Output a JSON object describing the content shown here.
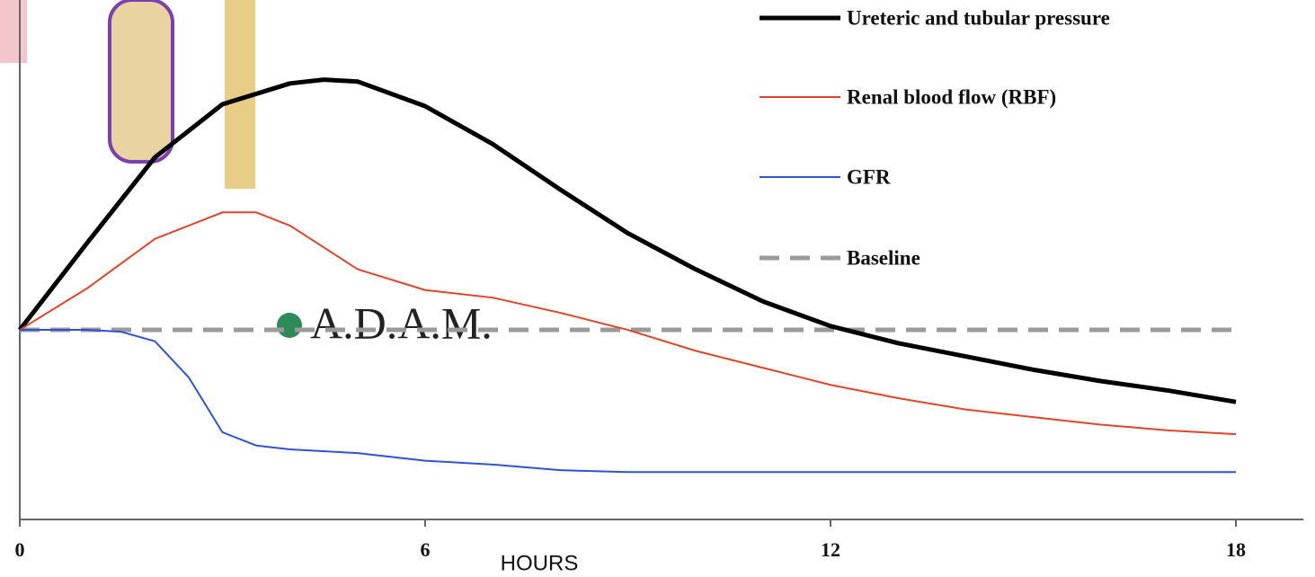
{
  "chart_data": {
    "type": "line",
    "x_label": "HOURS",
    "watermark": "A.D.A.M.",
    "xlim": [
      0,
      19
    ],
    "xticks": [
      0,
      6,
      12,
      18
    ],
    "ylim": [
      -1,
      1.74
    ],
    "series": [
      {
        "name": "Ureteric and tubular pressure",
        "color": "#000000",
        "width": 5,
        "dashed": false,
        "x": [
          0,
          1,
          2,
          3,
          4,
          4.5,
          5,
          6,
          7,
          8,
          9,
          10,
          11,
          12,
          13,
          14,
          15,
          16,
          17,
          18
        ],
        "values": [
          0,
          0.46,
          0.91,
          1.19,
          1.3,
          1.32,
          1.31,
          1.18,
          0.98,
          0.74,
          0.51,
          0.32,
          0.15,
          0.02,
          -0.07,
          -0.14,
          -0.21,
          -0.27,
          -0.32,
          -0.38
        ]
      },
      {
        "name": "Renal blood flow (RBF)",
        "color": "#e0442a",
        "width": 2,
        "dashed": false,
        "x": [
          0,
          1,
          2,
          3,
          3.5,
          4,
          5,
          6,
          7,
          8,
          9,
          10,
          11,
          12,
          13,
          14,
          15,
          16,
          17,
          18
        ],
        "values": [
          0,
          0.22,
          0.48,
          0.62,
          0.62,
          0.55,
          0.32,
          0.21,
          0.17,
          0.09,
          0,
          -0.11,
          -0.2,
          -0.29,
          -0.36,
          -0.42,
          -0.46,
          -0.5,
          -0.53,
          -0.55
        ]
      },
      {
        "name": "GFR",
        "color": "#2f52d6",
        "width": 2,
        "dashed": false,
        "x": [
          0,
          1,
          1.5,
          2,
          2.5,
          3,
          3.5,
          4,
          5,
          6,
          7,
          8,
          9,
          10,
          12,
          14,
          16,
          18
        ],
        "values": [
          0,
          0,
          -0.01,
          -0.06,
          -0.25,
          -0.54,
          -0.61,
          -0.63,
          -0.65,
          -0.69,
          -0.71,
          -0.74,
          -0.75,
          -0.75,
          -0.75,
          -0.75,
          -0.75,
          -0.75
        ]
      },
      {
        "name": "Baseline",
        "color": "#9a9a9a",
        "width": 5,
        "dashed": true,
        "x": [
          0,
          18
        ],
        "values": [
          0,
          0
        ]
      }
    ]
  }
}
